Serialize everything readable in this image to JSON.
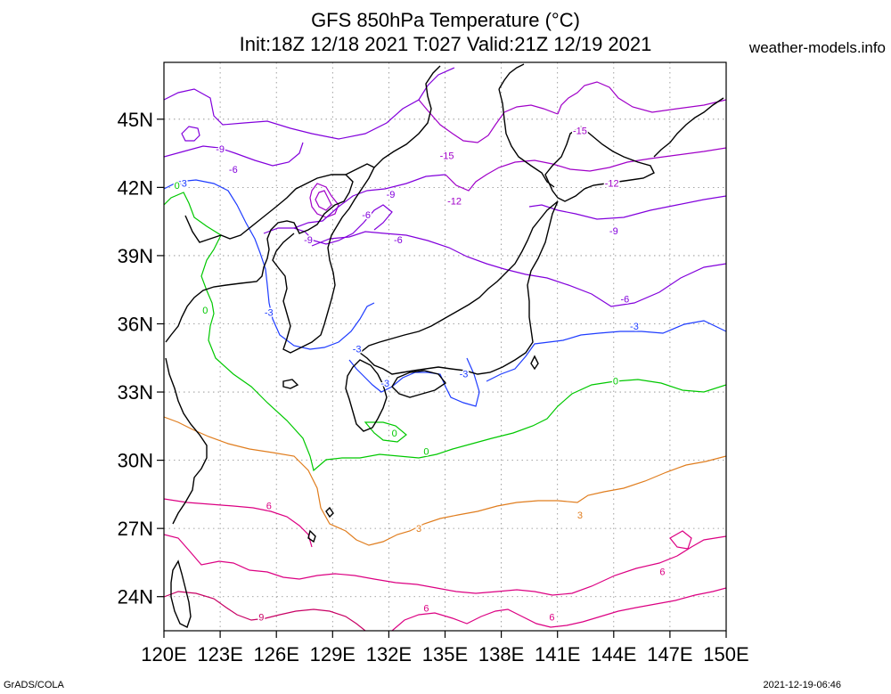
{
  "header": {
    "title_line1": "GFS 850hPa Temperature (°C)",
    "title_line2": "Init:18Z 12/18 2021 T:027 Valid:21Z 12/19 2021",
    "site": "weather-models.info"
  },
  "footer": {
    "left": "GrADS/COLA",
    "right": "2021-12-19-06:46"
  },
  "map": {
    "lon_range": [
      120,
      150
    ],
    "lat_range": [
      22.5,
      47.5
    ],
    "lat_ticks": [
      {
        "value": 45,
        "label": "45N"
      },
      {
        "value": 42,
        "label": "42N"
      },
      {
        "value": 39,
        "label": "39N"
      },
      {
        "value": 36,
        "label": "36N"
      },
      {
        "value": 33,
        "label": "33N"
      },
      {
        "value": 30,
        "label": "30N"
      },
      {
        "value": 27,
        "label": "27N"
      },
      {
        "value": 24,
        "label": "24N"
      }
    ],
    "lon_ticks": [
      {
        "value": 120,
        "label": "120E"
      },
      {
        "value": 123,
        "label": "123E"
      },
      {
        "value": 126,
        "label": "126E"
      },
      {
        "value": 129,
        "label": "129E"
      },
      {
        "value": 132,
        "label": "132E"
      },
      {
        "value": 135,
        "label": "135E"
      },
      {
        "value": 138,
        "label": "138E"
      },
      {
        "value": 141,
        "label": "141E"
      },
      {
        "value": 144,
        "label": "144E"
      },
      {
        "value": 147,
        "label": "147E"
      },
      {
        "value": 150,
        "label": "150E"
      }
    ],
    "contour_colors": {
      "m15": "#a000c8",
      "m12": "#a000c8",
      "m9": "#8200dc",
      "m6": "#8200dc",
      "m3": "#1e3cff",
      "z0": "#00c800",
      "p3": "#e07d1e",
      "p6": "#dc0082",
      "p9": "#c80064",
      "coast": "#000000"
    },
    "contour_labels": [
      {
        "text": "-15",
        "lon": 142.2,
        "lat": 44.5,
        "key": "m15"
      },
      {
        "text": "-15",
        "lon": 135.1,
        "lat": 43.4,
        "key": "m15"
      },
      {
        "text": "-12",
        "lon": 135.5,
        "lat": 41.4,
        "key": "m12"
      },
      {
        "text": "-12",
        "lon": 143.9,
        "lat": 42.2,
        "key": "m12"
      },
      {
        "text": "-9",
        "lon": 123.0,
        "lat": 43.7,
        "key": "m9"
      },
      {
        "text": "-9",
        "lon": 132.1,
        "lat": 41.7,
        "key": "m9"
      },
      {
        "text": "-9",
        "lon": 144.0,
        "lat": 40.1,
        "key": "m9"
      },
      {
        "text": "-9",
        "lon": 127.7,
        "lat": 39.7,
        "key": "m9"
      },
      {
        "text": "-6",
        "lon": 123.7,
        "lat": 42.8,
        "key": "m6"
      },
      {
        "text": "-6",
        "lon": 130.8,
        "lat": 40.8,
        "key": "m6"
      },
      {
        "text": "-6",
        "lon": 132.5,
        "lat": 39.7,
        "key": "m6"
      },
      {
        "text": "-6",
        "lon": 144.6,
        "lat": 37.1,
        "key": "m6"
      },
      {
        "text": "-3",
        "lon": 121.0,
        "lat": 42.2,
        "key": "m3"
      },
      {
        "text": "-3",
        "lon": 125.6,
        "lat": 36.5,
        "key": "m3"
      },
      {
        "text": "-3",
        "lon": 130.3,
        "lat": 34.9,
        "key": "m3"
      },
      {
        "text": "-3",
        "lon": 131.8,
        "lat": 33.4,
        "key": "m3"
      },
      {
        "text": "-3",
        "lon": 136.0,
        "lat": 33.8,
        "key": "m3"
      },
      {
        "text": "-3",
        "lon": 145.1,
        "lat": 35.9,
        "key": "m3"
      },
      {
        "text": "0",
        "lon": 120.7,
        "lat": 42.1,
        "key": "z0"
      },
      {
        "text": "0",
        "lon": 122.2,
        "lat": 36.6,
        "key": "z0"
      },
      {
        "text": "0",
        "lon": 132.3,
        "lat": 31.2,
        "key": "z0"
      },
      {
        "text": "0",
        "lon": 134.0,
        "lat": 30.4,
        "key": "z0"
      },
      {
        "text": "0",
        "lon": 144.1,
        "lat": 33.5,
        "key": "z0"
      },
      {
        "text": "3",
        "lon": 133.6,
        "lat": 27.0,
        "key": "p3"
      },
      {
        "text": "3",
        "lon": 142.2,
        "lat": 27.6,
        "key": "p3"
      },
      {
        "text": "6",
        "lon": 125.6,
        "lat": 28.0,
        "key": "p6"
      },
      {
        "text": "6",
        "lon": 146.6,
        "lat": 25.1,
        "key": "p6"
      },
      {
        "text": "6",
        "lon": 134.0,
        "lat": 23.5,
        "key": "p6"
      },
      {
        "text": "6",
        "lon": 140.7,
        "lat": 23.1,
        "key": "p6"
      },
      {
        "text": "9",
        "lon": 125.2,
        "lat": 23.1,
        "key": "p9"
      }
    ]
  }
}
